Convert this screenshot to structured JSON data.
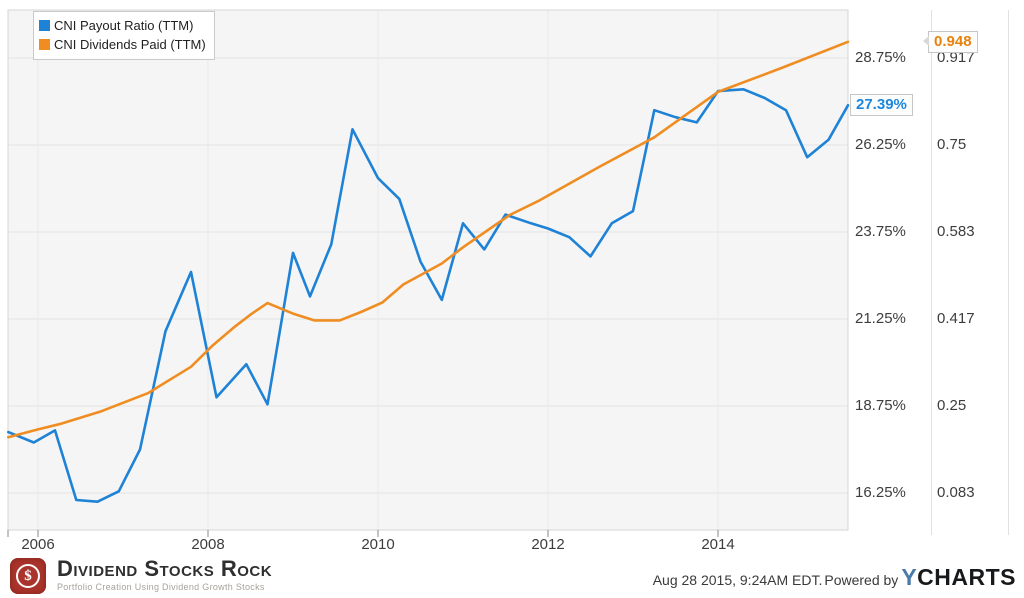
{
  "legend": {
    "items": [
      {
        "label": "CNI Payout Ratio (TTM)",
        "color": "#1e82d6"
      },
      {
        "label": "CNI Dividends Paid (TTM)",
        "color": "#ef8d22"
      }
    ]
  },
  "chart_data": {
    "type": "line",
    "title": "",
    "grid": true,
    "legend_position": "top-left",
    "x_axis": {
      "tick_labels": [
        "2006",
        "2008",
        "2010",
        "2012",
        "2014"
      ],
      "tick_years": [
        2006,
        2008,
        2010,
        2012,
        2014
      ],
      "range": [
        2005.65,
        2015.55
      ]
    },
    "y_axes": [
      {
        "name": "payout-ratio-percent",
        "side": "right-inner",
        "labels": [
          "28.75%",
          "26.25%",
          "23.75%",
          "21.25%",
          "18.75%",
          "16.25%"
        ],
        "values": [
          28.75,
          26.25,
          23.75,
          21.25,
          18.75,
          16.25
        ],
        "range": [
          15.2,
          30.1
        ]
      },
      {
        "name": "dividends-paid",
        "side": "right-outer",
        "labels": [
          "0.917",
          "0.75",
          "0.583",
          "0.417",
          "0.25",
          "0.083"
        ],
        "values": [
          0.917,
          0.75,
          0.583,
          0.417,
          0.25,
          0.083
        ],
        "range": [
          0.014,
          1.006
        ]
      }
    ],
    "series": [
      {
        "name": "CNI Payout Ratio (TTM)",
        "axis": "percent",
        "color": "#1e82d6",
        "badge_color": "#1c87dd",
        "current_label": "27.39%",
        "x": [
          2005.65,
          2005.95,
          2006.2,
          2006.45,
          2006.7,
          2006.95,
          2007.2,
          2007.5,
          2007.8,
          2008.1,
          2008.45,
          2008.7,
          2009.0,
          2009.2,
          2009.45,
          2009.7,
          2010.0,
          2010.25,
          2010.5,
          2010.75,
          2011.0,
          2011.25,
          2011.5,
          2011.8,
          2012.0,
          2012.25,
          2012.5,
          2012.75,
          2013.0,
          2013.25,
          2013.5,
          2013.75,
          2014.0,
          2014.3,
          2014.55,
          2014.8,
          2015.05,
          2015.3,
          2015.53
        ],
        "y": [
          18.0,
          17.7,
          18.05,
          16.05,
          16.0,
          16.3,
          17.5,
          20.9,
          22.6,
          19.0,
          19.95,
          18.8,
          23.15,
          21.9,
          23.4,
          26.7,
          25.3,
          24.7,
          22.9,
          21.8,
          24.0,
          23.25,
          24.25,
          24.0,
          23.85,
          23.6,
          23.05,
          24.0,
          24.35,
          27.25,
          27.05,
          26.9,
          27.8,
          27.85,
          27.6,
          27.25,
          25.9,
          26.4,
          27.39
        ]
      },
      {
        "name": "CNI Dividends Paid (TTM)",
        "axis": "dividends",
        "color": "#ef8d22",
        "badge_color": "#e8820c",
        "current_label": "0.948",
        "x": [
          2005.65,
          2006.0,
          2006.25,
          2006.75,
          2007.0,
          2007.3,
          2007.55,
          2007.8,
          2008.05,
          2008.3,
          2008.5,
          2008.7,
          2009.0,
          2009.25,
          2009.55,
          2009.8,
          2010.05,
          2010.3,
          2010.75,
          2011.0,
          2011.55,
          2011.9,
          2012.6,
          2013.25,
          2014.0,
          2014.75,
          2015.53
        ],
        "y": [
          0.19,
          0.205,
          0.215,
          0.24,
          0.256,
          0.275,
          0.3,
          0.325,
          0.365,
          0.4,
          0.425,
          0.447,
          0.427,
          0.414,
          0.414,
          0.43,
          0.448,
          0.483,
          0.523,
          0.554,
          0.616,
          0.644,
          0.708,
          0.765,
          0.852,
          0.898,
          0.948
        ]
      }
    ]
  },
  "footer": {
    "brand_symbol": "$",
    "brand_name": "Dividend Stocks Rock",
    "brand_tagline": "Portfolio Creation Using Dividend Growth Stocks",
    "timestamp": "Aug 28 2015, 9:24AM EDT.",
    "powered_by": "Powered by",
    "ycharts_y": "Y",
    "ycharts_rest": "CHARTS"
  },
  "colors": {
    "plot_background": "#f5f5f5",
    "plot_border": "#d5d5d5",
    "gridline": "#e3e3e3",
    "payout_line": "#1e82d6",
    "dividends_line": "#ef8d22"
  }
}
